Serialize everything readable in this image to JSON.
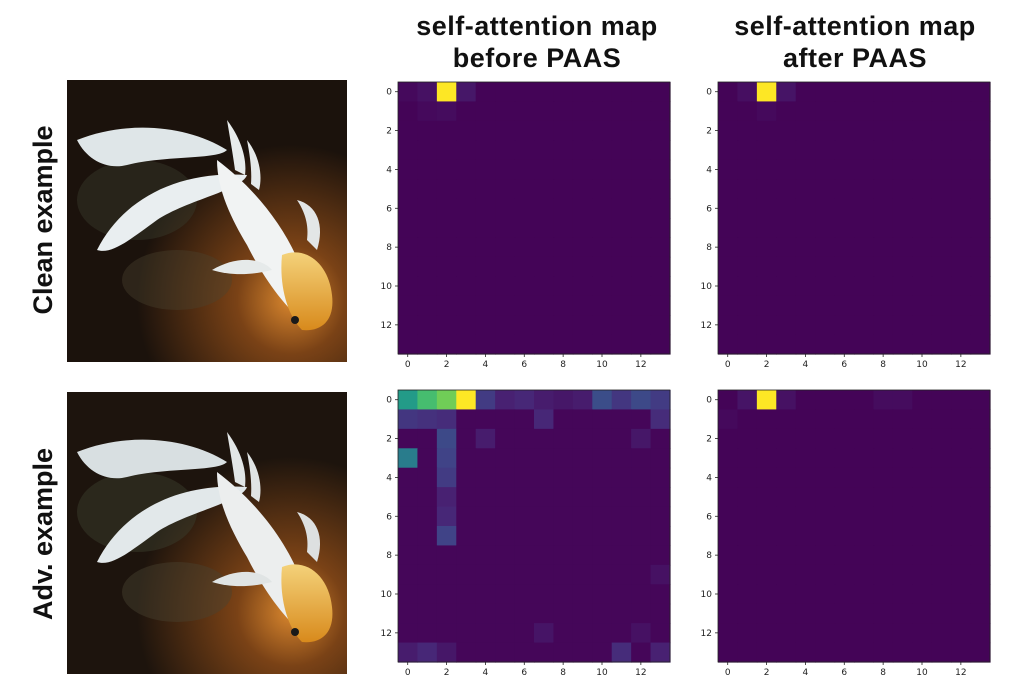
{
  "headers": {
    "before_line1": "self-attention map",
    "before_line2": "before PAAS",
    "after_line1": "self-attention map",
    "after_line2": "after PAAS"
  },
  "rows": {
    "clean_label": "Clean example",
    "adv_label": "Adv. example"
  },
  "colors": {
    "viridis_low": "#440154",
    "viridis_high": "#fde725",
    "photo_background": "#1e1510"
  },
  "chart_data": [
    {
      "type": "heatmap",
      "title": "self-attention map before PAAS",
      "row": "Clean example",
      "colormap": "viridis",
      "grid_size": 14,
      "xticks": [
        0,
        2,
        4,
        6,
        8,
        10,
        12
      ],
      "yticks": [
        0,
        2,
        4,
        6,
        8,
        10,
        12
      ],
      "background_value": 0.01,
      "cells": [
        {
          "row": 0,
          "col": 2,
          "value": 1.0
        },
        {
          "row": 0,
          "col": 1,
          "value": 0.06
        },
        {
          "row": 0,
          "col": 3,
          "value": 0.08
        },
        {
          "row": 0,
          "col": 0,
          "value": 0.03
        },
        {
          "row": 1,
          "col": 1,
          "value": 0.03
        },
        {
          "row": 1,
          "col": 2,
          "value": 0.04
        }
      ]
    },
    {
      "type": "heatmap",
      "title": "self-attention map after PAAS",
      "row": "Clean example",
      "colormap": "viridis",
      "grid_size": 14,
      "xticks": [
        0,
        2,
        4,
        6,
        8,
        10,
        12
      ],
      "yticks": [
        0,
        2,
        4,
        6,
        8,
        10,
        12
      ],
      "background_value": 0.01,
      "cells": [
        {
          "row": 0,
          "col": 2,
          "value": 1.0
        },
        {
          "row": 0,
          "col": 1,
          "value": 0.05
        },
        {
          "row": 0,
          "col": 3,
          "value": 0.07
        },
        {
          "row": 1,
          "col": 2,
          "value": 0.03
        }
      ]
    },
    {
      "type": "heatmap",
      "title": "self-attention map before PAAS",
      "row": "Adv. example",
      "colormap": "viridis",
      "grid_size": 14,
      "xticks": [
        0,
        2,
        4,
        6,
        8,
        10,
        12
      ],
      "yticks": [
        0,
        2,
        4,
        6,
        8,
        10,
        12
      ],
      "background_value": 0.02,
      "cells": [
        {
          "row": 0,
          "col": 0,
          "value": 0.55
        },
        {
          "row": 0,
          "col": 1,
          "value": 0.7
        },
        {
          "row": 0,
          "col": 2,
          "value": 0.78
        },
        {
          "row": 0,
          "col": 3,
          "value": 1.0
        },
        {
          "row": 0,
          "col": 4,
          "value": 0.22
        },
        {
          "row": 0,
          "col": 5,
          "value": 0.12
        },
        {
          "row": 0,
          "col": 6,
          "value": 0.14
        },
        {
          "row": 0,
          "col": 7,
          "value": 0.1
        },
        {
          "row": 0,
          "col": 8,
          "value": 0.08
        },
        {
          "row": 0,
          "col": 9,
          "value": 0.1
        },
        {
          "row": 0,
          "col": 10,
          "value": 0.3
        },
        {
          "row": 0,
          "col": 11,
          "value": 0.2
        },
        {
          "row": 0,
          "col": 12,
          "value": 0.28
        },
        {
          "row": 0,
          "col": 13,
          "value": 0.22
        },
        {
          "row": 1,
          "col": 0,
          "value": 0.2
        },
        {
          "row": 1,
          "col": 1,
          "value": 0.18
        },
        {
          "row": 1,
          "col": 2,
          "value": 0.16
        },
        {
          "row": 1,
          "col": 7,
          "value": 0.14
        },
        {
          "row": 1,
          "col": 13,
          "value": 0.16
        },
        {
          "row": 2,
          "col": 2,
          "value": 0.28
        },
        {
          "row": 2,
          "col": 4,
          "value": 0.1
        },
        {
          "row": 2,
          "col": 12,
          "value": 0.08
        },
        {
          "row": 3,
          "col": 0,
          "value": 0.45
        },
        {
          "row": 3,
          "col": 2,
          "value": 0.25
        },
        {
          "row": 4,
          "col": 2,
          "value": 0.22
        },
        {
          "row": 5,
          "col": 2,
          "value": 0.12
        },
        {
          "row": 6,
          "col": 2,
          "value": 0.14
        },
        {
          "row": 7,
          "col": 2,
          "value": 0.25
        },
        {
          "row": 9,
          "col": 13,
          "value": 0.06
        },
        {
          "row": 12,
          "col": 7,
          "value": 0.07
        },
        {
          "row": 12,
          "col": 12,
          "value": 0.06
        },
        {
          "row": 13,
          "col": 0,
          "value": 0.1
        },
        {
          "row": 13,
          "col": 1,
          "value": 0.14
        },
        {
          "row": 13,
          "col": 2,
          "value": 0.08
        },
        {
          "row": 13,
          "col": 11,
          "value": 0.16
        },
        {
          "row": 13,
          "col": 13,
          "value": 0.12
        }
      ]
    },
    {
      "type": "heatmap",
      "title": "self-attention map after PAAS",
      "row": "Adv. example",
      "colormap": "viridis",
      "grid_size": 14,
      "xticks": [
        0,
        2,
        4,
        6,
        8,
        10,
        12
      ],
      "yticks": [
        0,
        2,
        4,
        6,
        8,
        10,
        12
      ],
      "background_value": 0.01,
      "cells": [
        {
          "row": 0,
          "col": 2,
          "value": 1.0
        },
        {
          "row": 0,
          "col": 1,
          "value": 0.07
        },
        {
          "row": 0,
          "col": 3,
          "value": 0.06
        },
        {
          "row": 0,
          "col": 8,
          "value": 0.04
        },
        {
          "row": 0,
          "col": 9,
          "value": 0.04
        },
        {
          "row": 1,
          "col": 0,
          "value": 0.03
        }
      ]
    }
  ]
}
